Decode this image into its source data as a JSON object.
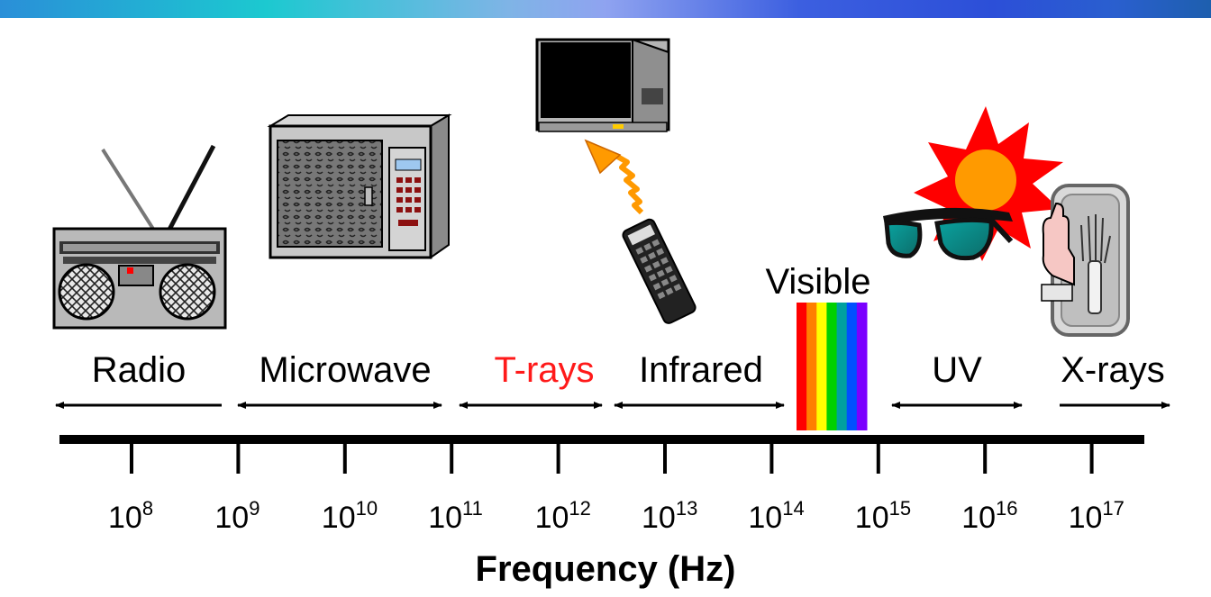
{
  "title": "",
  "axis": {
    "title": "Frequency (Hz)",
    "tick_base": "10",
    "tick_exponents": [
      "8",
      "9",
      "10",
      "11",
      "12",
      "13",
      "14",
      "15",
      "16",
      "17"
    ]
  },
  "bands": [
    {
      "id": "radio",
      "label": "Radio",
      "color": "#000000",
      "icon": "radio-icon"
    },
    {
      "id": "microwave",
      "label": "Microwave",
      "color": "#000000",
      "icon": "microwave-oven-icon"
    },
    {
      "id": "t-rays",
      "label": "T-rays",
      "color": "#ff1a1a"
    },
    {
      "id": "infrared",
      "label": "Infrared",
      "color": "#000000",
      "icon": "tv-remote-icon"
    },
    {
      "id": "visible",
      "label": "Visible",
      "color": "#000000",
      "icon": "rainbow-spectrum-icon"
    },
    {
      "id": "uv",
      "label": "UV",
      "color": "#000000",
      "icon": "sun-sunglasses-icon"
    },
    {
      "id": "x-rays",
      "label": "X-rays",
      "color": "#000000",
      "icon": "xray-hand-icon"
    }
  ],
  "spectrum_colors": [
    "#ff0000",
    "#ff7f00",
    "#ffff00",
    "#00d000",
    "#00a0a0",
    "#0050ff",
    "#7a00ff"
  ]
}
